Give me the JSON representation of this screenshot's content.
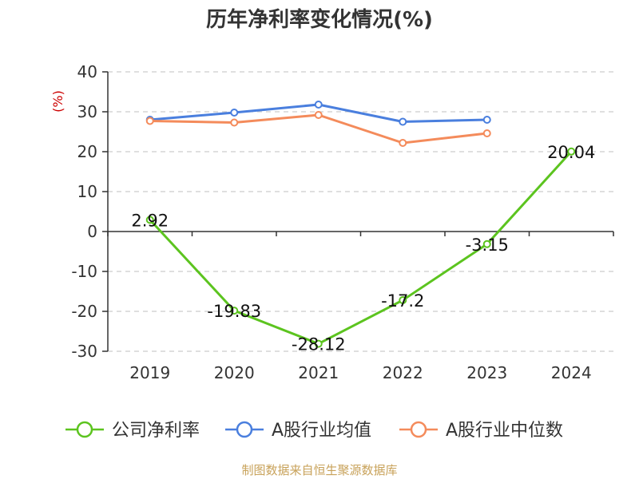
{
  "title": "历年净利率变化情况(%)",
  "source": "制图数据来自恒生聚源数据库",
  "chart_data": {
    "type": "line",
    "title": "历年净利率变化情况(%)",
    "ylabel": "(%)",
    "xlabel": "",
    "categories": [
      "2019",
      "2020",
      "2021",
      "2022",
      "2023",
      "2024"
    ],
    "ylim": [
      -30,
      40
    ],
    "yticks": [
      40,
      30,
      20,
      10,
      0,
      -10,
      -20,
      -30
    ],
    "grid": true,
    "legend_position": "bottom",
    "series": [
      {
        "name": "公司净利率",
        "color": "#5cc41f",
        "values": [
          2.92,
          -19.83,
          -28.12,
          -17.2,
          -3.15,
          20.04
        ],
        "labels": [
          "2.92",
          "-19.83",
          "-28.12",
          "-17.2",
          "-3.15",
          "20.04"
        ]
      },
      {
        "name": "A股行业均值",
        "color": "#4a7fde",
        "values": [
          28.0,
          29.8,
          31.8,
          27.5,
          28.0,
          null
        ]
      },
      {
        "name": "A股行业中位数",
        "color": "#f48b5b",
        "values": [
          27.7,
          27.3,
          29.2,
          22.2,
          24.6,
          null
        ]
      }
    ]
  }
}
